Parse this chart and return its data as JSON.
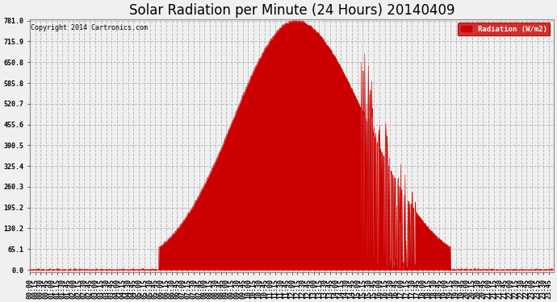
{
  "title": "Solar Radiation per Minute (24 Hours) 20140409",
  "copyright": "Copyright 2014 Cartronics.com",
  "legend_label": "Radiation (W/m2)",
  "yticks": [
    0.0,
    65.1,
    130.2,
    195.2,
    260.3,
    325.4,
    390.5,
    455.6,
    520.7,
    585.8,
    650.8,
    715.9,
    781.0
  ],
  "ymax": 781.0,
  "background_color": "#f0f0f0",
  "plot_bg_color": "#f0f0f0",
  "fill_color": "#cc0000",
  "line_color": "#cc0000",
  "grid_color": "#bbbbbb",
  "title_fontsize": 12,
  "tick_fontsize": 6,
  "sunrise": 355,
  "sunset": 1155,
  "peak_time": 730,
  "peak_val": 781.0
}
